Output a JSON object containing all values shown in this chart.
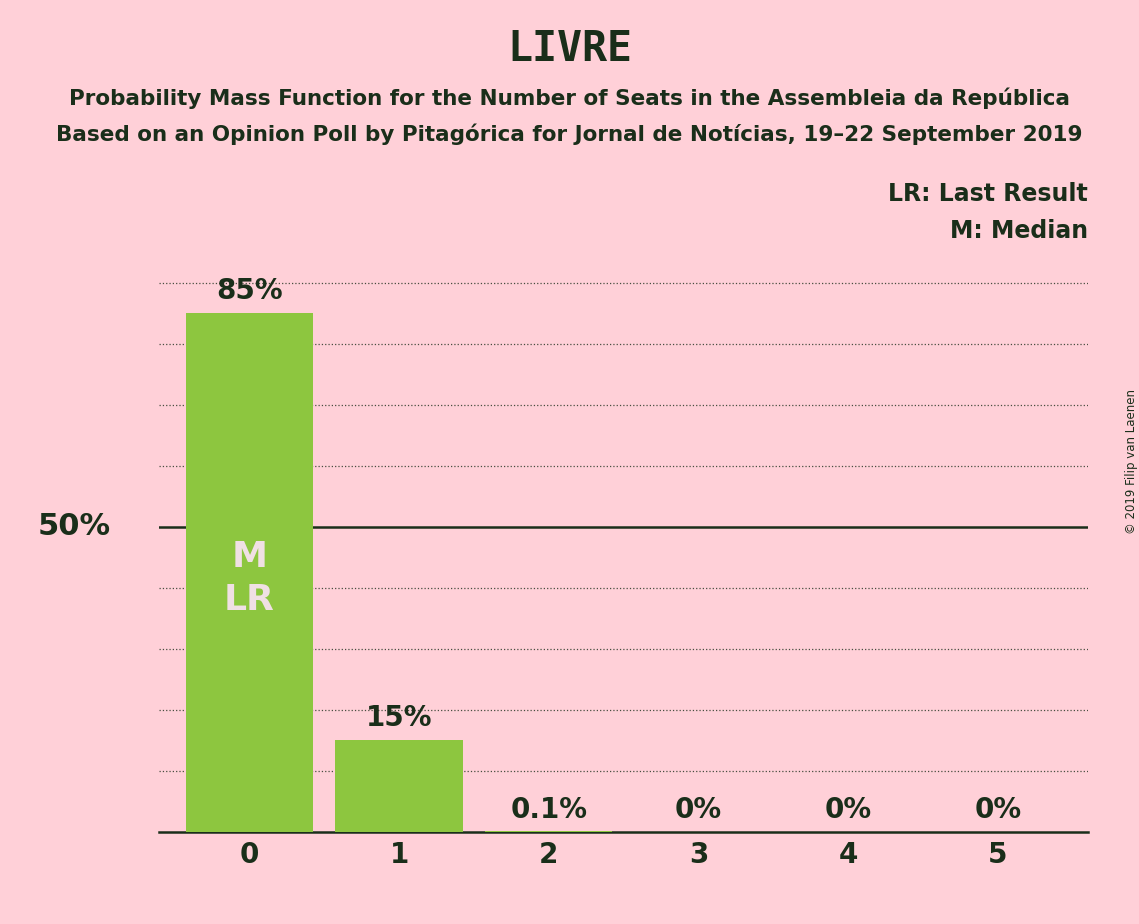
{
  "title": "LIVRE",
  "subtitle1": "Probability Mass Function for the Number of Seats in the Assembleia da República",
  "subtitle2": "Based on an Opinion Poll by Pitagórica for Jornal de Notícias, 19–22 September 2019",
  "copyright": "© 2019 Filip van Laenen",
  "categories": [
    0,
    1,
    2,
    3,
    4,
    5
  ],
  "values": [
    0.85,
    0.15,
    0.001,
    0.0,
    0.0,
    0.0
  ],
  "bar_labels": [
    "85%",
    "15%",
    "0.1%",
    "0%",
    "0%",
    "0%"
  ],
  "bar_color": "#8DC63F",
  "background_color": "#FFD0D8",
  "text_color": "#1A2E1A",
  "bar_text_color": "#F0E0E4",
  "ylabel_text": "50%",
  "ylabel_value": 0.5,
  "solid_line_value": 0.5,
  "legend_lr": "LR: Last Result",
  "legend_m": "M: Median",
  "median_seat": 0,
  "last_result_seat": 0,
  "ylim": [
    0,
    1.0
  ],
  "dotted_lines": [
    0.1,
    0.2,
    0.3,
    0.4,
    0.6,
    0.7,
    0.8,
    0.9
  ],
  "title_fontsize": 30,
  "subtitle_fontsize": 15.5,
  "bar_label_fontsize": 20,
  "tick_fontsize": 20,
  "legend_fontsize": 17,
  "ylabel_fontsize": 22,
  "bar_inner_label_fontsize": 26
}
